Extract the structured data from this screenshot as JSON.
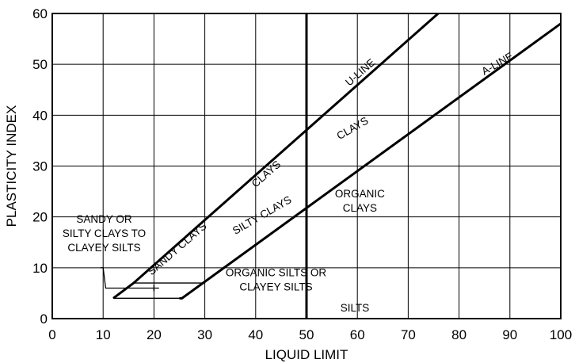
{
  "chart_data": {
    "type": "line",
    "xlabel": "LIQUID LIMIT",
    "ylabel": "PLASTICITY INDEX",
    "xlim": [
      0,
      100
    ],
    "ylim": [
      0,
      60
    ],
    "x_ticks": [
      0,
      10,
      20,
      30,
      40,
      50,
      60,
      70,
      80,
      90,
      100
    ],
    "y_ticks": [
      0,
      10,
      20,
      30,
      40,
      50,
      60
    ],
    "grid": true,
    "series": [
      {
        "name": "U-LINE",
        "points": [
          [
            12,
            4
          ],
          [
            16,
            7
          ],
          [
            75.9,
            60
          ]
        ]
      },
      {
        "name": "A-LINE",
        "points": [
          [
            25,
            4
          ],
          [
            25.5,
            4
          ],
          [
            100,
            58
          ]
        ]
      }
    ],
    "divider_x": 50,
    "annotation_lines": [
      {
        "points": [
          [
            9.5,
            10
          ],
          [
            10,
            10
          ],
          [
            10.5,
            6
          ],
          [
            21,
            6
          ]
        ]
      },
      {
        "points": [
          [
            12,
            4
          ],
          [
            25,
            4
          ]
        ]
      },
      {
        "points": [
          [
            16,
            7
          ],
          [
            29.5,
            7
          ]
        ]
      }
    ],
    "region_labels": [
      {
        "lines": [
          "SANDY OR",
          "SILTY CLAYS TO",
          "CLAYEY SILTS"
        ],
        "x": 10.2,
        "y": 16.8,
        "rotate": 0
      },
      {
        "lines": [
          "SANDY CLAYS"
        ],
        "x": 24.5,
        "y": 13.8,
        "rotate": -41
      },
      {
        "lines": [
          "CLAYS"
        ],
        "x": 42,
        "y": 28.5,
        "rotate": -41
      },
      {
        "lines": [
          "U-LINE"
        ],
        "x": 60.5,
        "y": 48.5,
        "rotate": -41
      },
      {
        "lines": [
          "SILTY CLAYS"
        ],
        "x": 41.2,
        "y": 20.4,
        "rotate": -30
      },
      {
        "lines": [
          "CLAYS"
        ],
        "x": 59,
        "y": 37.5,
        "rotate": -30
      },
      {
        "lines": [
          "A-LINE"
        ],
        "x": 87.5,
        "y": 50.2,
        "rotate": -30
      },
      {
        "lines": [
          "ORGANIC",
          "CLAYS"
        ],
        "x": 60.5,
        "y": 23.2,
        "rotate": 0
      },
      {
        "lines": [
          "ORGANIC SILTS OR",
          "CLAYEY SILTS"
        ],
        "x": 44,
        "y": 7.7,
        "rotate": 0
      },
      {
        "lines": [
          "SILTS"
        ],
        "x": 59.5,
        "y": 2.2,
        "rotate": 0
      }
    ]
  }
}
